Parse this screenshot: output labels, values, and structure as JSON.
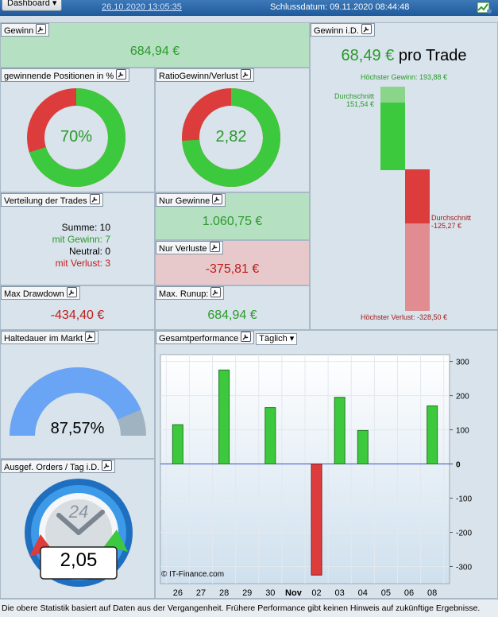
{
  "header": {
    "dashboard_label": "Dashboard",
    "start_date": "26.10.2020 13:05:35",
    "end_date": "Schlussdatum: 09.11.2020 08:44:48"
  },
  "gewinn": {
    "title": "Gewinn",
    "value": "684,94 €"
  },
  "gewinn_id": {
    "title": "Gewinn i.D.",
    "value": "68,49 €",
    "suffix": "pro Trade",
    "highest_gain": "Höchster Gewinn: 193,88 €",
    "avg_label": "Durchschnitt",
    "avg_gain": "151,54 €",
    "avg_loss": "-125,27 €",
    "highest_loss": "Höchster Verlust: -328,50 €",
    "highest_gain_num": 193.88,
    "avg_gain_num": 151.54,
    "avg_loss_num": -125.27,
    "highest_loss_num": -328.5
  },
  "win_positions": {
    "title": "gewinnende Positionen in %",
    "value": "70%",
    "fraction": 0.7
  },
  "ratio": {
    "title": "RatioGewinn/Verlust",
    "value": "2,82",
    "fraction": 0.738
  },
  "distribution": {
    "title": "Verteilung der Trades",
    "sum": "Summe: 10",
    "wins": "mit Gewinn: 7",
    "neutral": "Neutral: 0",
    "losses": "mit Verlust: 3"
  },
  "only_gains": {
    "title": "Nur Gewinne",
    "value": "1.060,75 €"
  },
  "only_losses": {
    "title": "Nur Verluste",
    "value": "-375,81 €"
  },
  "max_drawdown": {
    "title": "Max Drawdown",
    "value": "-434,40 €"
  },
  "max_runup": {
    "title": "Max. Runup:",
    "value": "684,94 €"
  },
  "holding": {
    "title": "Haltedauer im Markt",
    "value": "87,57%",
    "fraction": 0.8757
  },
  "orders": {
    "title": "Ausgef. Orders / Tag i.D.",
    "value": "2,05",
    "clock_label": "24"
  },
  "performance": {
    "title": "Gesamtperformance",
    "period": "Täglich",
    "watermark": "© IT-Finance.com"
  },
  "chart_data": {
    "type": "bar",
    "categories": [
      "26",
      "27",
      "28",
      "29",
      "30",
      "Nov",
      "02",
      "03",
      "04",
      "05",
      "06",
      "08"
    ],
    "values": [
      115,
      0,
      275,
      0,
      165,
      0,
      -325,
      195,
      98,
      0,
      0,
      170
    ],
    "ylim": [
      -350,
      320
    ],
    "yticks": [
      300,
      200,
      100,
      0,
      -100,
      -200,
      -300
    ],
    "title": "",
    "xlabel": "",
    "ylabel": ""
  },
  "footer": {
    "text": "Die obere Statistik basiert auf Daten aus der Vergangenheit. Frühere Performance gibt keinen Hinweis auf zukünftige Ergebnisse."
  },
  "colors": {
    "green": "#3dc93d",
    "red": "#dd3c3c",
    "blue_gauge": "#6aa4f5",
    "grey_gauge": "#9fb3c0"
  }
}
